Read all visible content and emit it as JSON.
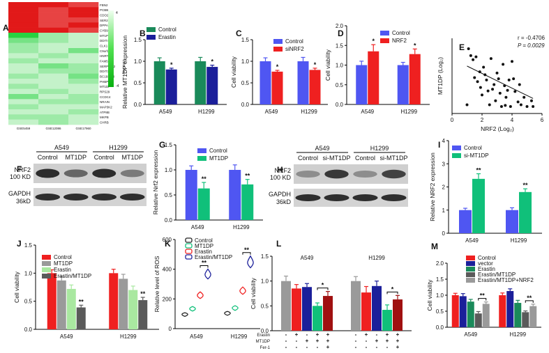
{
  "panel_letters": {
    "A": "A",
    "B": "B",
    "C": "C",
    "D": "D",
    "E": "E",
    "F": "F",
    "G": "G",
    "H": "H",
    "I": "I",
    "J": "J",
    "K": "K",
    "L": "L",
    "M": "M"
  },
  "colors": {
    "green": "#1a8a5a",
    "navy": "#1b1f9a",
    "blue": "#4f56f2",
    "red": "#ef2020",
    "sig_green": "#10c07a",
    "dark_red": "#a01010",
    "grey": "#9a9a9a",
    "light_green": "#a9e8a0",
    "dark_grey": "#5a5a5a",
    "heat_hi": "#e01818",
    "heat_lo": "#28d040"
  },
  "heatmap": {
    "genes": [
      "FBN2",
      "PCBB",
      "CDO26",
      "SER2",
      "DPPA2",
      "CYB9",
      "MT1P",
      "DDIT4",
      "CLK1",
      "C9orf22",
      "HNRT2",
      "FAM57C3",
      "SERPINE2",
      "DDIT3",
      "BC193558",
      "PHBP1",
      "MT1DP",
      "RPS29",
      "CCDC4",
      "NRAIN",
      "MAP3K2",
      "ATP8B",
      "MKPB",
      "CHRB"
    ],
    "datasets": [
      "GSE5459",
      "GSE12086",
      "GSE17960"
    ],
    "scale_max": "4",
    "scale_min": "-4",
    "scale_label": "Color Key"
  },
  "blots": {
    "F": {
      "cells": [
        "A549",
        "H1299"
      ],
      "lanes": [
        "Control",
        "MT1DP",
        "Control",
        "MT1DP"
      ],
      "rows": [
        "NRF2",
        "100 KD",
        "GAPDH",
        "36kD"
      ]
    },
    "H": {
      "cells": [
        "A549",
        "H1299"
      ],
      "lanes": [
        "Control",
        "si-MT1DP",
        "Control",
        "si-MT1DP"
      ],
      "rows": [
        "NRF2",
        "100 KD",
        "GAPDH",
        "36kD"
      ]
    }
  },
  "treatment_table": {
    "rows": [
      "Erastin",
      "MT1DP",
      "Fer-1"
    ],
    "A549": [
      [
        "-",
        "+",
        "-",
        "+",
        "+"
      ],
      [
        "-",
        "-",
        "+",
        "+",
        "+"
      ],
      [
        "-",
        "-",
        "-",
        "-",
        "+"
      ]
    ],
    "H1299": [
      [
        "-",
        "+",
        "-",
        "+",
        "+"
      ],
      [
        "-",
        "-",
        "+",
        "+",
        "+"
      ],
      [
        "-",
        "-",
        "-",
        "-",
        "+"
      ]
    ]
  },
  "chart_data": [
    {
      "panel": "B",
      "type": "bar",
      "categories": [
        "A549",
        "H1299"
      ],
      "series": [
        {
          "name": "Control",
          "color": "#1a8a5a",
          "values": [
            1.0,
            1.0
          ],
          "err": [
            0.08,
            0.09
          ]
        },
        {
          "name": "Erastin",
          "color": "#1b1f9a",
          "values": [
            0.81,
            0.87
          ],
          "err": [
            0.03,
            0.04
          ]
        }
      ],
      "ylabel": "Relative MT1DP expression",
      "ylim": [
        0,
        1.5
      ],
      "yticks": [
        0.0,
        0.5,
        1.0,
        1.5
      ],
      "yticklabels": [
        "0.0",
        "0.5",
        "1.0",
        "1.5"
      ],
      "sig": [
        "*",
        "*"
      ],
      "legend": [
        "Control",
        "Erastin"
      ]
    },
    {
      "panel": "C",
      "type": "bar",
      "categories": [
        "A549",
        "H1299"
      ],
      "series": [
        {
          "name": "Control",
          "color": "#4f56f2",
          "values": [
            1.0,
            1.0
          ],
          "err": [
            0.08,
            0.09
          ]
        },
        {
          "name": "siNRF2",
          "color": "#ef2020",
          "values": [
            0.76,
            0.8
          ],
          "err": [
            0.03,
            0.04
          ]
        }
      ],
      "ylabel": "Cell viability",
      "ylim": [
        0,
        1.5
      ],
      "yticks": [
        0.0,
        0.5,
        1.0,
        1.5
      ],
      "yticklabels": [
        "0.0",
        "0.5",
        "1.0",
        "1.5"
      ],
      "sig": [
        "*",
        "*"
      ],
      "legend": [
        "Control",
        "siNRF2"
      ]
    },
    {
      "panel": "D",
      "type": "bar",
      "categories": [
        "A549",
        "H1299"
      ],
      "series": [
        {
          "name": "Control",
          "color": "#4f56f2",
          "values": [
            1.0,
            1.0
          ],
          "err": [
            0.1,
            0.07
          ]
        },
        {
          "name": "NRF2",
          "color": "#ef2020",
          "values": [
            1.35,
            1.28
          ],
          "err": [
            0.17,
            0.13
          ]
        }
      ],
      "ylabel": "Cell viability",
      "ylim": [
        0,
        2.0
      ],
      "yticks": [
        0.0,
        0.5,
        1.0,
        1.5,
        2.0
      ],
      "yticklabels": [
        "0.0",
        "0.5",
        "1.0",
        "1.5",
        "2.0"
      ],
      "sig": [
        "*",
        "*"
      ],
      "legend": [
        "Control",
        "NRF2"
      ]
    },
    {
      "panel": "E",
      "type": "scatter",
      "xlabel": "NRF2 (Log₂)",
      "ylabel": "MT1DP (Log₂)",
      "xlim": [
        0,
        6
      ],
      "ylim": [
        0,
        1.3
      ],
      "xticks": [
        0,
        2,
        4,
        6
      ],
      "xticklabels": [
        "0",
        "2",
        "4",
        "6"
      ],
      "annotation": [
        "r = -0.4706",
        "P = 0.0029"
      ],
      "points": [
        [
          1.1,
          1.12
        ],
        [
          1.25,
          1.0
        ],
        [
          1.4,
          0.93
        ],
        [
          1.5,
          0.62
        ],
        [
          1.6,
          0.98
        ],
        [
          1.7,
          0.55
        ],
        [
          1.85,
          0.72
        ],
        [
          1.9,
          0.45
        ],
        [
          2.0,
          0.32
        ],
        [
          2.1,
          0.8
        ],
        [
          2.2,
          0.67
        ],
        [
          2.3,
          0.58
        ],
        [
          2.4,
          0.39
        ],
        [
          2.6,
          0.95
        ],
        [
          2.7,
          0.42
        ],
        [
          2.8,
          0.5
        ],
        [
          2.9,
          0.22
        ],
        [
          3.0,
          0.7
        ],
        [
          3.1,
          0.6
        ],
        [
          3.2,
          0.35
        ],
        [
          3.3,
          0.12
        ],
        [
          3.4,
          0.85
        ],
        [
          3.5,
          0.48
        ],
        [
          3.6,
          0.28
        ],
        [
          3.7,
          0.4
        ],
        [
          3.8,
          0.58
        ],
        [
          3.9,
          0.12
        ],
        [
          4.0,
          0.9
        ],
        [
          4.1,
          0.6
        ],
        [
          4.2,
          0.38
        ],
        [
          4.4,
          0.2
        ],
        [
          4.5,
          0.5
        ],
        [
          4.6,
          0.15
        ],
        [
          4.8,
          0.28
        ],
        [
          5.0,
          0.12
        ],
        [
          5.3,
          0.22
        ],
        [
          5.4,
          0.12
        ],
        [
          1.0,
          0.15
        ],
        [
          2.5,
          0.15
        ],
        [
          3.55,
          0.14
        ]
      ],
      "fit": [
        [
          1.0,
          0.82
        ],
        [
          5.4,
          0.26
        ]
      ]
    },
    {
      "panel": "G",
      "type": "bar",
      "categories": [
        "A549",
        "H1299"
      ],
      "series": [
        {
          "name": "Control",
          "color": "#4f56f2",
          "values": [
            1.0,
            1.0
          ],
          "err": [
            0.08,
            0.1
          ]
        },
        {
          "name": "MT1DP",
          "color": "#10c07a",
          "values": [
            0.63,
            0.71
          ],
          "err": [
            0.12,
            0.1
          ]
        }
      ],
      "ylabel": "Relative Nrf2 expression",
      "ylim": [
        0,
        1.5
      ],
      "yticks": [
        0.0,
        0.5,
        1.0,
        1.5
      ],
      "yticklabels": [
        "0.0",
        "0.5",
        "1.0",
        "1.5"
      ],
      "sig": [
        "**",
        "**"
      ],
      "legend": [
        "Control",
        "MT1DP"
      ]
    },
    {
      "panel": "I",
      "type": "bar",
      "categories": [
        "A549",
        "H1299"
      ],
      "series": [
        {
          "name": "Control",
          "color": "#4f56f2",
          "values": [
            1.0,
            1.0
          ],
          "err": [
            0.08,
            0.1
          ]
        },
        {
          "name": "si-MT1DP",
          "color": "#10c07a",
          "values": [
            2.35,
            1.78
          ],
          "err": [
            0.22,
            0.14
          ]
        }
      ],
      "ylabel": "Relative NRF2 expression",
      "ylim": [
        0,
        4.0
      ],
      "yticks": [
        0.0,
        1.0,
        2.0,
        3.0,
        4.0
      ],
      "yticklabels": [
        "0",
        "1",
        "2",
        "3",
        "4"
      ],
      "sig": [
        "**",
        "**"
      ],
      "legend": [
        "Control",
        "si-MT1DP"
      ]
    },
    {
      "panel": "J",
      "type": "bar",
      "categories": [
        "A549",
        "H1299"
      ],
      "series": [
        {
          "name": "Control",
          "color": "#ef2020",
          "values": [
            1.0,
            1.0
          ],
          "err": [
            0.06,
            0.07
          ]
        },
        {
          "name": "MT1DP",
          "color": "#9a9a9a",
          "values": [
            0.87,
            0.9
          ],
          "err": [
            0.07,
            0.08
          ]
        },
        {
          "name": "Erastin",
          "color": "#a9e8a0",
          "values": [
            0.72,
            0.7
          ],
          "err": [
            0.07,
            0.07
          ]
        },
        {
          "name": "Erastin/MT1DP",
          "color": "#5a5a5a",
          "values": [
            0.39,
            0.52
          ],
          "err": [
            0.04,
            0.05
          ]
        }
      ],
      "ylabel": "Cell viability",
      "ylim": [
        0,
        1.5
      ],
      "yticks": [
        0.0,
        0.5,
        1.0,
        1.5
      ],
      "yticklabels": [
        "0.0",
        "0.5",
        "1.0",
        "1.5"
      ],
      "sig": [
        "**",
        "**"
      ],
      "legend": [
        "Control",
        "MT1DP",
        "Erastin",
        "Erastin/MT1DP"
      ]
    },
    {
      "panel": "K",
      "type": "violin",
      "categories": [
        "A549",
        "H1299"
      ],
      "series": [
        {
          "name": "Control",
          "color": "#222222",
          "values": [
            92,
            100
          ]
        },
        {
          "name": "MT1DP",
          "color": "#10c07a",
          "values": [
            130,
            135
          ]
        },
        {
          "name": "Erastin",
          "color": "#ef2020",
          "values": [
            220,
            250
          ]
        },
        {
          "name": "Erastin/MT1DP",
          "color": "#1b1f9a",
          "values": [
            360,
            440
          ]
        }
      ],
      "ylabel": "Relative level of ROS",
      "ylim": [
        0,
        600
      ],
      "yticks": [
        0,
        200,
        400,
        600
      ],
      "yticklabels": [
        "0",
        "200",
        "400",
        "600"
      ],
      "sig": [
        "**",
        "**"
      ],
      "legend": [
        "Control",
        "MT1DP",
        "Erastin",
        "Erastin/MT1DP"
      ]
    },
    {
      "panel": "L",
      "type": "bar",
      "groups": [
        "A549",
        "H1299"
      ],
      "colors": [
        "#9a9a9a",
        "#ef2020",
        "#1b1f9a",
        "#10c07a",
        "#a01010"
      ],
      "values": [
        [
          1.0,
          0.85,
          0.88,
          0.5,
          0.7
        ],
        [
          1.0,
          0.77,
          0.9,
          0.42,
          0.63
        ]
      ],
      "err": [
        [
          0.1,
          0.08,
          0.07,
          0.06,
          0.09
        ],
        [
          0.09,
          0.12,
          0.1,
          0.1,
          0.08
        ]
      ],
      "ylabel": "Cell viability",
      "ylim": [
        0,
        1.5
      ],
      "yticks": [
        0.0,
        0.5,
        1.0,
        1.5
      ],
      "yticklabels": [
        "0.0",
        "0.5",
        "1.0",
        "1.5"
      ],
      "sig": [
        "*",
        "*"
      ]
    },
    {
      "panel": "M",
      "type": "bar",
      "categories": [
        "A549",
        "H1299"
      ],
      "series": [
        {
          "name": "Control",
          "color": "#ef2020",
          "values": [
            1.0,
            1.0
          ],
          "err": [
            0.06,
            0.07
          ]
        },
        {
          "name": "vector",
          "color": "#1b1f9a",
          "values": [
            0.97,
            1.13
          ],
          "err": [
            0.08,
            0.07
          ]
        },
        {
          "name": "Erastin",
          "color": "#1a8a5a",
          "values": [
            0.8,
            0.76
          ],
          "err": [
            0.07,
            0.08
          ]
        },
        {
          "name": "Erastin/MT1DP",
          "color": "#5a5a5a",
          "values": [
            0.43,
            0.47
          ],
          "err": [
            0.06,
            0.04
          ]
        },
        {
          "name": "Erastin/MT1DP+NRF2",
          "color": "#9a9a9a",
          "values": [
            0.73,
            0.66
          ],
          "err": [
            0.06,
            0.06
          ]
        }
      ],
      "ylabel": "Cell viability",
      "ylim": [
        0,
        2.0
      ],
      "yticks": [
        0.0,
        0.5,
        1.0,
        1.5,
        2.0
      ],
      "yticklabels": [
        "0.0",
        "0.5",
        "1.0",
        "1.5",
        "2.0"
      ],
      "sig": [
        "**",
        "**"
      ],
      "legend": [
        "Control",
        "vector",
        "Erastin",
        "Erastin/MT1DP",
        "Erastin/MT1DP+NRF2"
      ]
    }
  ]
}
